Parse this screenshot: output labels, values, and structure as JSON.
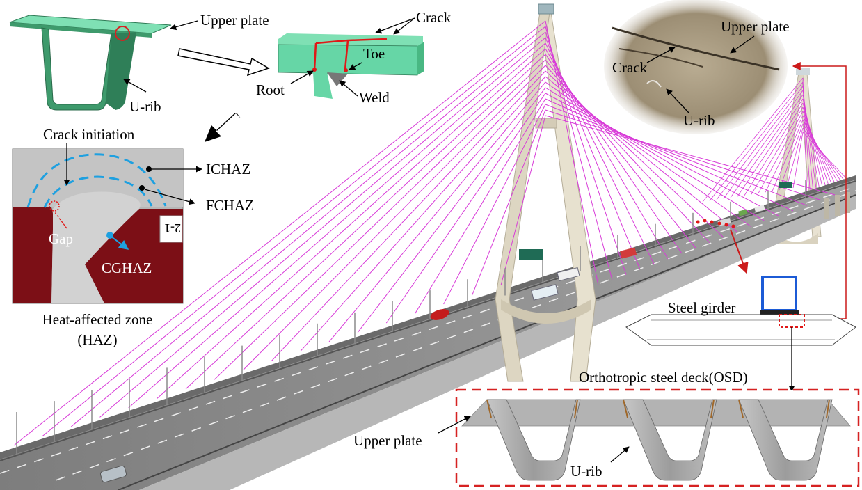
{
  "labels": {
    "upper_plate_top": "Upper plate",
    "u_rib_top": "U-rib",
    "crack_top": "Crack",
    "toe": "Toe",
    "root": "Root",
    "weld": "Weld",
    "crack_initiation": "Crack initiation",
    "ichaz": "ICHAZ",
    "fchaz": "FCHAZ",
    "gap": "Gap",
    "cghaz": "CGHAZ",
    "haz_line1": "Heat-affected zone",
    "haz_line2": "(HAZ)",
    "specimen_tag": "2-1",
    "photo_upper_plate": "Upper plate",
    "photo_crack": "Crack",
    "photo_u_rib": "U-rib",
    "steel_girder": "Steel girder",
    "osd": "Orthotropic steel deck(OSD)",
    "osd_upper_plate": "Upper plate",
    "osd_u_rib": "U-rib"
  },
  "colors": {
    "cable": "#d83ad8",
    "pylon": "#e2dccb",
    "deck": "#8d8d8d",
    "rib_green": "#3e9a6c",
    "rib_green_light": "#7fe0b4",
    "haz_red": "#7c0f16",
    "dashed_blue": "#1ea0e0",
    "callout_red": "#cc1a1a"
  }
}
